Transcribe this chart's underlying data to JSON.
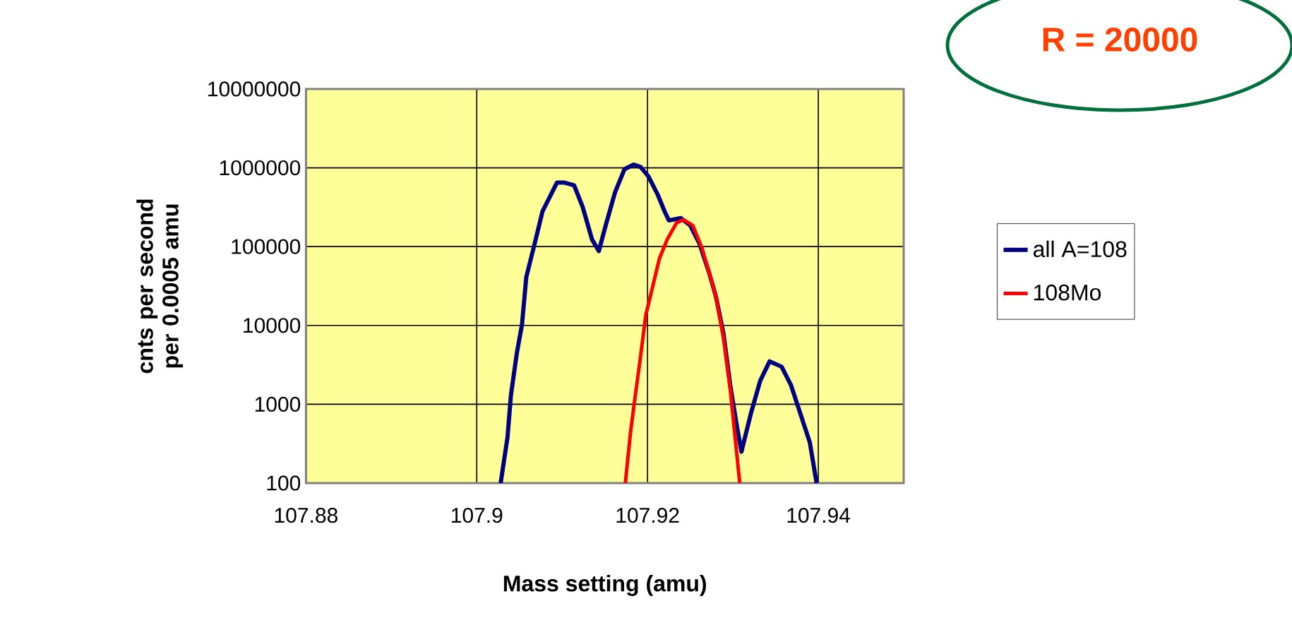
{
  "chart_data": {
    "type": "line",
    "xlabel": "Mass setting (amu)",
    "ylabel": "cnts per second per 0.0005 amu",
    "annotations": [
      "R = 20000"
    ],
    "log": "y",
    "grid": true,
    "legend": "right",
    "line_style": "solid",
    "xlim": [
      107.88,
      107.95
    ],
    "xticks": [
      107.88,
      107.9,
      107.92,
      107.94
    ],
    "ylim": [
      100,
      10000000
    ],
    "yticks": [
      100,
      1000,
      10000,
      100000,
      1000000,
      10000000
    ],
    "series": [
      {
        "name": "all A=108",
        "color": "#000080",
        "x": [
          107.9028,
          107.9036,
          107.904,
          107.9047,
          107.9053,
          107.9058,
          107.9069,
          107.9077,
          107.9094,
          107.9102,
          107.9114,
          107.9124,
          107.9135,
          107.9143,
          107.9151,
          107.9162,
          107.9173,
          107.9184,
          107.9192,
          107.9201,
          107.9212,
          107.922,
          107.9225,
          107.9239,
          107.925,
          107.9261,
          107.9272,
          107.928,
          107.9289,
          107.9297,
          107.9305,
          107.931,
          107.9321,
          107.9332,
          107.9343,
          107.9357,
          107.9368,
          107.9379,
          107.939,
          107.9398
        ],
        "values": [
          100,
          380,
          1300,
          4500,
          10300,
          41000,
          123000,
          280000,
          650000,
          650000,
          600000,
          320000,
          123000,
          88000,
          186000,
          490000,
          960000,
          1100000,
          1020000,
          780000,
          455000,
          280000,
          215000,
          230000,
          186000,
          108000,
          47000,
          23500,
          7800,
          1700,
          500,
          250,
          760,
          1990,
          3500,
          3000,
          1750,
          760,
          330,
          100
        ]
      },
      {
        "name": "108Mo",
        "color": "#ff0000",
        "x": [
          107.9174,
          107.918,
          107.9185,
          107.9191,
          107.9198,
          107.9206,
          107.9214,
          107.9223,
          107.9234,
          107.9242,
          107.9253,
          107.9264,
          107.9272,
          107.928,
          107.9289,
          107.9297,
          107.9302,
          107.9308
        ],
        "values": [
          100,
          435,
          1140,
          3460,
          13600,
          31000,
          71000,
          123000,
          200000,
          219000,
          186000,
          94000,
          47000,
          23500,
          6800,
          1500,
          435,
          100
        ]
      }
    ]
  }
}
